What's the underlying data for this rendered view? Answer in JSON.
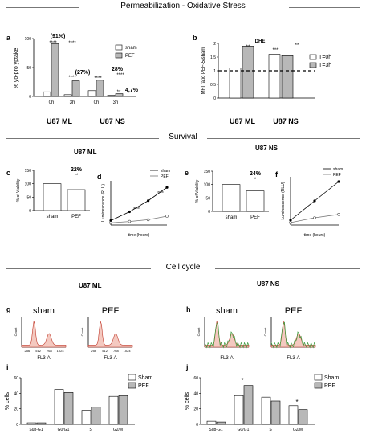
{
  "sections": {
    "permeabilization": "Permeabilization - Oxidative Stress",
    "survival": "Survival",
    "cellcycle": "Cell cycle"
  },
  "labels": {
    "u87ml": "U87 ML",
    "u87ns": "U87 NS"
  },
  "letters": [
    "a",
    "b",
    "c",
    "d",
    "e",
    "f",
    "g",
    "h",
    "i",
    "j"
  ],
  "chart_data": [
    {
      "panel": "a",
      "type": "bar",
      "ylabel": "% yo-pro yptake",
      "ylim": [
        0,
        100
      ],
      "yticks": [
        0,
        50,
        100
      ],
      "xticks": [
        "0h",
        "3h",
        "0h",
        "3h"
      ],
      "groups": [
        "U87 ML",
        "U87 NS"
      ],
      "series": [
        {
          "name": "sham",
          "values": [
            8,
            3,
            10,
            2
          ]
        },
        {
          "name": "PEF",
          "values": [
            91,
            27,
            28,
            4.7
          ]
        }
      ],
      "annotations": [
        "(91%)",
        "(27%)",
        "28%",
        "4,7%"
      ],
      "stars": [
        "****",
        "****",
        "****",
        "****",
        "****",
        "**"
      ]
    },
    {
      "panel": "b",
      "type": "bar",
      "title": "DHE",
      "ylabel": "MFI ratio PEF-5/sham",
      "ylim": [
        0,
        2
      ],
      "yticks": [
        0,
        0.5,
        1,
        1.5,
        2
      ],
      "groups": [
        "U87 ML",
        "U87 NS"
      ],
      "series": [
        {
          "name": "T=0h",
          "values": [
            1.1,
            1.6
          ]
        },
        {
          "name": "T=3h",
          "values": [
            1.9,
            1.55
          ]
        }
      ],
      "stars": [
        "**",
        "***",
        "**"
      ]
    },
    {
      "panel": "c",
      "type": "bar",
      "ylabel": "% of Viability",
      "ylim": [
        0,
        150
      ],
      "yticks": [
        0,
        50,
        100,
        150
      ],
      "categories": [
        "sham",
        "PEF"
      ],
      "values": [
        100,
        78
      ],
      "annotations": [
        "22%"
      ],
      "stars": [
        "**"
      ]
    },
    {
      "panel": "d",
      "type": "line",
      "ylabel": "Luminescence (RLU)",
      "xlabel": "time (hours)",
      "series": [
        {
          "name": "sham",
          "x": [
            0,
            24,
            48,
            72
          ],
          "y": [
            0.1,
            0.3,
            0.55,
            0.85
          ]
        },
        {
          "name": "PEF",
          "x": [
            0,
            24,
            48,
            72
          ],
          "y": [
            0.05,
            0.08,
            0.12,
            0.2
          ]
        }
      ],
      "stars": [
        "****",
        "****"
      ]
    },
    {
      "panel": "e",
      "type": "bar",
      "ylabel": "% of Viability",
      "ylim": [
        0,
        150
      ],
      "yticks": [
        0,
        50,
        100,
        150
      ],
      "categories": [
        "sham",
        "PEF"
      ],
      "values": [
        100,
        76
      ],
      "annotations": [
        "24%"
      ],
      "stars": [
        "*"
      ]
    },
    {
      "panel": "f",
      "type": "line",
      "ylabel": "Luminescence (RLU)",
      "xlabel": "time (hours)",
      "series": [
        {
          "name": "sham",
          "x": [
            0,
            24,
            48
          ],
          "y": [
            0.1,
            0.5,
            0.9
          ]
        },
        {
          "name": "PEF",
          "x": [
            0,
            24,
            48
          ],
          "y": [
            0.05,
            0.15,
            0.22
          ]
        }
      ]
    },
    {
      "panel": "g",
      "type": "area",
      "plots": [
        {
          "name": "sham",
          "xlabel": "FL3-A",
          "ylabel": "Count"
        },
        {
          "name": "PEF",
          "xlabel": "FL3-A",
          "ylabel": "Count"
        }
      ],
      "xticks": [
        "256",
        "512",
        "768",
        "1024"
      ]
    },
    {
      "panel": "h",
      "type": "area",
      "plots": [
        {
          "name": "sham",
          "xlabel": "FL3-A",
          "ylabel": "Count"
        },
        {
          "name": "PEF",
          "xlabel": "FL3-A",
          "ylabel": "Count"
        }
      ]
    },
    {
      "panel": "i",
      "type": "bar",
      "ylabel": "% cells",
      "ylim": [
        0,
        60
      ],
      "yticks": [
        0,
        20,
        40,
        60
      ],
      "categories": [
        "Sub-G1",
        "G0/G1",
        "S",
        "G2/M"
      ],
      "series": [
        {
          "name": "Sham",
          "values": [
            2,
            45,
            18,
            36
          ]
        },
        {
          "name": "PEF",
          "values": [
            2,
            41,
            22,
            37
          ]
        }
      ]
    },
    {
      "panel": "j",
      "type": "bar",
      "ylabel": "% cells",
      "ylim": [
        0,
        60
      ],
      "yticks": [
        0,
        20,
        40,
        60
      ],
      "categories": [
        "Sub-G1",
        "G0/G1",
        "S",
        "G2/M"
      ],
      "series": [
        {
          "name": "Sham",
          "values": [
            4,
            37,
            35,
            24
          ]
        },
        {
          "name": "PEF",
          "values": [
            3,
            50,
            30,
            19
          ]
        }
      ],
      "stars": [
        "*",
        "*"
      ]
    }
  ]
}
